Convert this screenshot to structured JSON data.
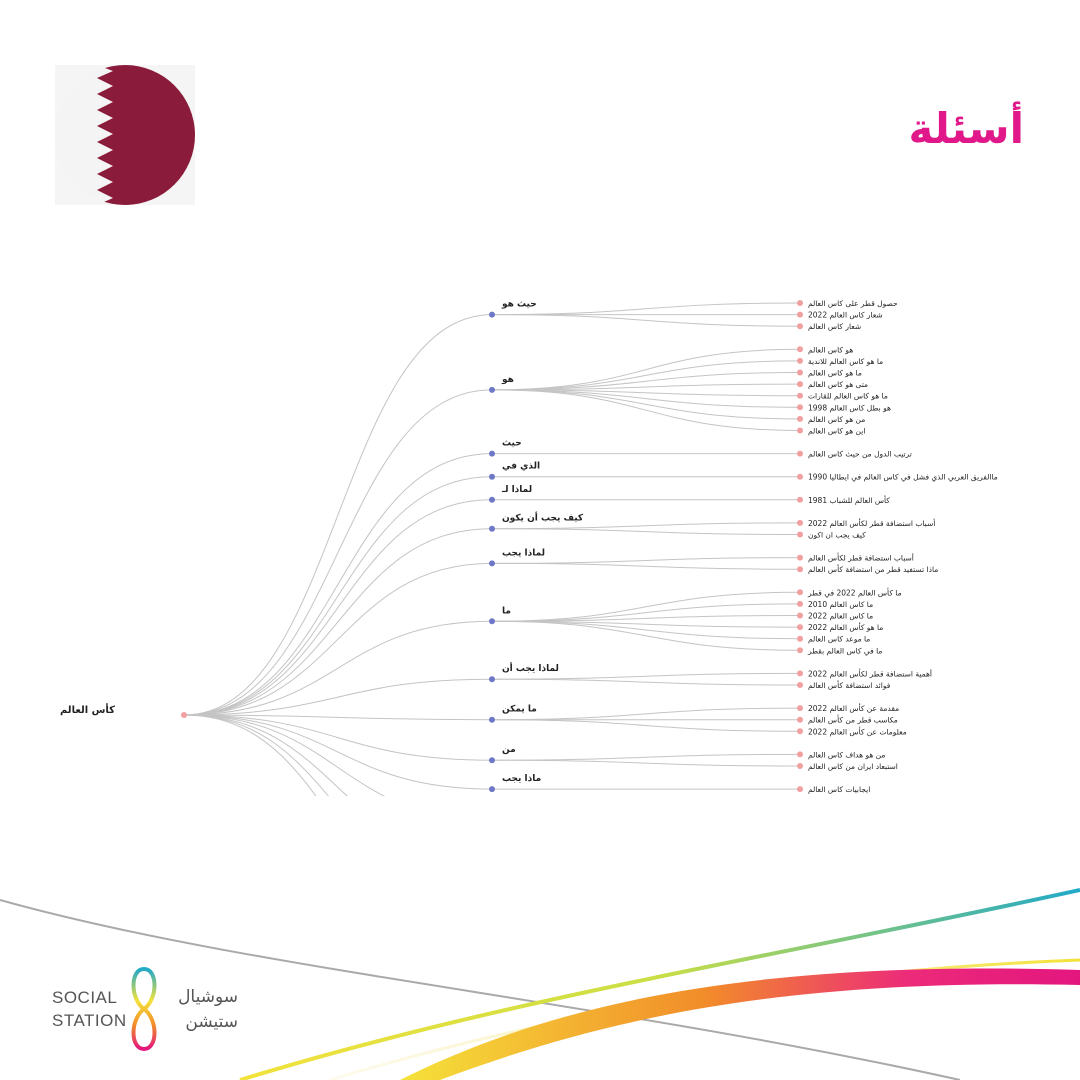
{
  "header": {
    "title": "أسئلة",
    "flag_colors": {
      "maroon": "#8a1b3b",
      "white": "#ffffff"
    }
  },
  "tree": {
    "root": "كأس العالم",
    "branches": [
      {
        "label": "حيث هو",
        "leaves": [
          "حصول قطر على كاس العالم",
          "شعار كاس العالم 2022",
          "شعار كاس العالم"
        ]
      },
      {
        "label": "هو",
        "leaves": [
          "هو كاس العالم",
          "ما هو كاس العالم للاندية",
          "ما هو كاس العالم",
          "متى هو كاس العالم",
          "ما هو كاس العالم للقارات",
          "هو بطل كاس العالم 1998",
          "من هو كاس العالم",
          "اين هو كاس العالم"
        ]
      },
      {
        "label": "حيث",
        "leaves": [
          "ترتيب الدول من حيث كاس العالم"
        ]
      },
      {
        "label": "الذي في",
        "leaves": [
          "ماالفريق العربي الذي فشل في كاس العالم في ايطاليا 1990"
        ]
      },
      {
        "label": "لماذا لـ",
        "leaves": [
          "كأس العالم للشباب 1981"
        ]
      },
      {
        "label": "كيف يجب أن يكون",
        "leaves": [
          "أسباب استضافة قطر لكأس العالم 2022",
          "كيف يجب ان اكون"
        ]
      },
      {
        "label": "لماذا يجب",
        "leaves": [
          "أسباب استضافة قطر لكأس العالم",
          "ماذا تستفيد قطر من استضافة كأس العالم"
        ]
      },
      {
        "label": "ما",
        "leaves": [
          "ما كأس العالم 2022 في قطر",
          "ما كاس العالم 2010",
          "ما كاس العالم 2022",
          "ما هو كأس العالم 2022",
          "ما موعد كاس العالم",
          "ما في كاس العالم بقطر"
        ]
      },
      {
        "label": "لماذا يجب أن",
        "leaves": [
          "أهمية استضافة قطر لكأس العالم 2022",
          "فوائد استضافة كأس العالم"
        ]
      },
      {
        "label": "ما يمكن",
        "leaves": [
          "مقدمة عن كأس العالم 2022",
          "مكاسب قطر من كأس العالم",
          "معلومات عن كأس العالم 2022"
        ]
      },
      {
        "label": "من",
        "leaves": [
          "من هو هداف كاس العالم",
          "استبعاد ايران من كاس العالم"
        ]
      },
      {
        "label": "ماذا يجب",
        "leaves": [
          "ايجابيات كاس العالم"
        ]
      }
    ],
    "colors": {
      "branch_node": "#6d78c6",
      "leaf_node": "#f0a0a0",
      "edge": "#c4c4c4"
    }
  },
  "logo": {
    "line1": "SOCIAL",
    "line2": "STATION",
    "ar_line1": "سوشيال",
    "ar_line2": "ستيشن"
  }
}
